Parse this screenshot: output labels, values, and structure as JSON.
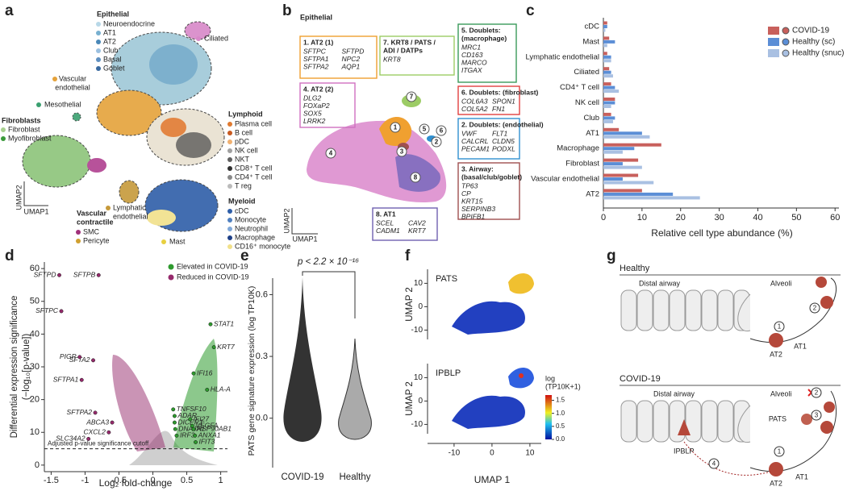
{
  "a": {
    "letter": "a",
    "epithelial_title": "Epithelial",
    "epithelial": [
      "Neuroendocrine",
      "AT1",
      "AT2",
      "Club",
      "Basal",
      "Goblet"
    ],
    "ciliated": "Ciliated",
    "vascular_endothelial": [
      "Vascular",
      "endothelial"
    ],
    "mesothelial": "Mesothelial",
    "fibroblasts_title": "Fibroblasts",
    "fibroblasts": [
      "Fibroblast",
      "Myofibroblast"
    ],
    "lymphoid_title": "Lymphoid",
    "lymphoid": [
      "Plasma cell",
      "B cell",
      "pDC",
      "NK cell",
      "NKT",
      "CD8⁺ T cell",
      "CD4⁺ T cell",
      "T reg"
    ],
    "myeloid_title": "Myeloid",
    "myeloid": [
      "cDC",
      "Monocyte",
      "Neutrophil",
      "Macrophage",
      "CD16⁺ monocyte"
    ],
    "vascular_contractile_title": [
      "Vascular",
      "contractile"
    ],
    "vascular_contractile": [
      "SMC",
      "Pericyte"
    ],
    "lymphatic_endothelial": [
      "Lymphatic",
      "endothelial"
    ],
    "mast": "Mast",
    "umap2": "UMAP2",
    "umap1": "UMAP1"
  },
  "b": {
    "letter": "b",
    "title": "Epithelial",
    "boxes": [
      {
        "title": [
          "1. AT2 (1)"
        ],
        "genes": [
          "SFTPC",
          "SFTPD",
          "SFTPA1",
          "NPC2",
          "SFTPA2",
          "AQP1"
        ]
      },
      {
        "title": [
          "7. KRT8 / PATS /",
          "ADI / DATPs"
        ],
        "genes": [
          "KRT8"
        ]
      },
      {
        "title": [
          "5. Doublets:",
          "(macrophage)"
        ],
        "genes": [
          "MRC1",
          "CD163",
          "MARCO",
          "ITGAX"
        ]
      },
      {
        "title": [
          "4. AT2 (2)"
        ],
        "genes": [
          "DLG2",
          "FOXaP2",
          "SOX5",
          "LRRK2"
        ]
      },
      {
        "title": [
          "6. Doublets: (fibroblast)"
        ],
        "genes": [
          "COL6A3",
          "SPON1",
          "COL5A2",
          "FN1"
        ]
      },
      {
        "title": [
          "2. Doublets: (endothelial)"
        ],
        "genes": [
          "VWF",
          "FLT1",
          "CALCRL",
          "CLDN5",
          "PECAM1",
          "PODXL"
        ]
      },
      {
        "title": [
          "3. Airway:",
          "(basal/club/goblet)"
        ],
        "genes": [
          "TP63",
          "CP",
          "KRT15",
          "SERPINB3",
          "BPIFB1"
        ]
      },
      {
        "title": [
          "8. AT1"
        ],
        "genes": [
          "SCEL",
          "CAV2",
          "CADM1",
          "KRT7"
        ]
      }
    ],
    "clusters": [
      "1",
      "2",
      "3",
      "4",
      "5",
      "6",
      "7",
      "8"
    ],
    "umap2": "UMAP2",
    "umap1": "UMAP1"
  },
  "c": {
    "letter": "c",
    "type": "bar",
    "orientation": "horizontal",
    "categories": [
      "cDC",
      "Mast",
      "Lymphatic endothelial",
      "Ciliated",
      "CD4⁺ T cell",
      "NK cell",
      "Club",
      "AT1",
      "Macrophage",
      "Fibroblast",
      "Vascular endothelial",
      "AT2"
    ],
    "series": [
      {
        "name": "COVID-19",
        "color": "#c8605c",
        "values": [
          1,
          1.5,
          1,
          1.5,
          2,
          3,
          2,
          4,
          15,
          9,
          9,
          10
        ]
      },
      {
        "name": "Healthy (sc)",
        "color": "#5b8ed6",
        "values": [
          1,
          3,
          2,
          2,
          3,
          3,
          3,
          10,
          8,
          5,
          5,
          18
        ]
      },
      {
        "name": "Healthy (snuc)",
        "color": "#a9c0e2",
        "values": [
          0.5,
          1,
          2,
          2.5,
          4,
          2,
          2.5,
          12,
          5,
          10,
          13,
          25
        ]
      }
    ],
    "xlim": [
      0,
      61
    ],
    "xticks": [
      0,
      10,
      20,
      30,
      40,
      50,
      60
    ],
    "xlabel": "Relative cell type abundance (%)",
    "legend": "top-right"
  },
  "d": {
    "letter": "d",
    "type": "scatter",
    "legend": [
      "Elevated in COVID-19",
      "Reduced in COVID-19"
    ],
    "up_color": "#2e9a2e",
    "down_color": "#962a6c",
    "xlim": [
      -1.6,
      1.1
    ],
    "xticks": [
      -1.5,
      -1,
      -0.5,
      0,
      0.5,
      1
    ],
    "ylim": [
      -2,
      62
    ],
    "yticks": [
      0,
      10,
      20,
      30,
      40,
      50,
      60
    ],
    "ylabel": [
      "Differential expression significance",
      "(−log₁₀[p-value])"
    ],
    "xlabel": "Log₂ fold-change",
    "cutoff": 5,
    "cutoff_label": "Adjusted p-value significance cutoff",
    "genes": [
      {
        "name": "SFTPD",
        "x": -1.38,
        "y": 58
      },
      {
        "name": "SFTPB",
        "x": -0.8,
        "y": 58
      },
      {
        "name": "SFTPC",
        "x": -1.35,
        "y": 47
      },
      {
        "name": "SFTA2",
        "x": -0.88,
        "y": 32
      },
      {
        "name": "PIGR",
        "x": -1.08,
        "y": 33
      },
      {
        "name": "SFTPA1",
        "x": -1.05,
        "y": 26
      },
      {
        "name": "SFTPA2",
        "x": -0.85,
        "y": 16
      },
      {
        "name": "ABCA3",
        "x": -0.6,
        "y": 13
      },
      {
        "name": "CXCL2",
        "x": -0.65,
        "y": 10
      },
      {
        "name": "SLC34A2",
        "x": -0.95,
        "y": 8
      },
      {
        "name": "STAT1",
        "x": 0.85,
        "y": 43
      },
      {
        "name": "KRT7",
        "x": 0.9,
        "y": 36
      },
      {
        "name": "IFI16",
        "x": 0.6,
        "y": 28
      },
      {
        "name": "HLA-A",
        "x": 0.8,
        "y": 23
      },
      {
        "name": "TNFSF10",
        "x": 0.3,
        "y": 17
      },
      {
        "name": "ADAR",
        "x": 0.32,
        "y": 15
      },
      {
        "name": "DICER1",
        "x": 0.32,
        "y": 13
      },
      {
        "name": "DNAJA1",
        "x": 0.33,
        "y": 11
      },
      {
        "name": "IRF3",
        "x": 0.35,
        "y": 9
      },
      {
        "name": "IFI27",
        "x": 0.55,
        "y": 14
      },
      {
        "name": "VEGFA",
        "x": 0.58,
        "y": 12
      },
      {
        "name": "HSP90AB1",
        "x": 0.6,
        "y": 11
      },
      {
        "name": "ANXA1",
        "x": 0.62,
        "y": 9
      },
      {
        "name": "IFIT3",
        "x": 0.63,
        "y": 7
      }
    ]
  },
  "e": {
    "letter": "e",
    "type": "violin",
    "pvalue": "p < 2.2 × 10⁻¹⁶",
    "categories": [
      "COVID-19",
      "Healthy"
    ],
    "ylim": [
      -0.24,
      0.68
    ],
    "yticks": [
      {
        "value": 0,
        "label": "0.0"
      },
      {
        "value": 0.3,
        "label": "0.3"
      },
      {
        "value": 0.6,
        "label": "0.6"
      }
    ],
    "ylabel": "PATS gene signature expression (log TP10K)"
  },
  "f": {
    "letter": "f",
    "panels": [
      "PATS",
      "IPBLP"
    ],
    "xlim": [
      -17,
      13
    ],
    "xticks": [
      -10,
      0,
      10
    ],
    "ylim": [
      -14,
      16
    ],
    "yticks": [
      -10,
      0,
      10
    ],
    "xlabel": "UMAP 1",
    "ylabel": "UMAP 2",
    "colorbar_title": [
      "log",
      "(TP10K+1)"
    ],
    "colorbar_lim": [
      0,
      1.7
    ],
    "colorbar_ticks": [
      {
        "value": 0,
        "label": "0.0"
      },
      {
        "value": 0.5,
        "label": "0.5"
      },
      {
        "value": 1,
        "label": "1.0"
      },
      {
        "value": 1.5,
        "label": "1.5"
      }
    ]
  },
  "g": {
    "letter": "g",
    "healthy": {
      "title": "Healthy",
      "airway": "Distal airway",
      "alveoli": "Alveoli",
      "at2": "AT2",
      "at1": "AT1",
      "steps": [
        "1",
        "2"
      ]
    },
    "covid": {
      "title": "COVID-19",
      "airway": "Distal airway",
      "alveoli": "Alveoli",
      "pats": "PATS",
      "ipblp": "IPBLP",
      "at2": "AT2",
      "at1": "AT1",
      "steps": [
        "1",
        "2",
        "3",
        "4"
      ]
    }
  }
}
